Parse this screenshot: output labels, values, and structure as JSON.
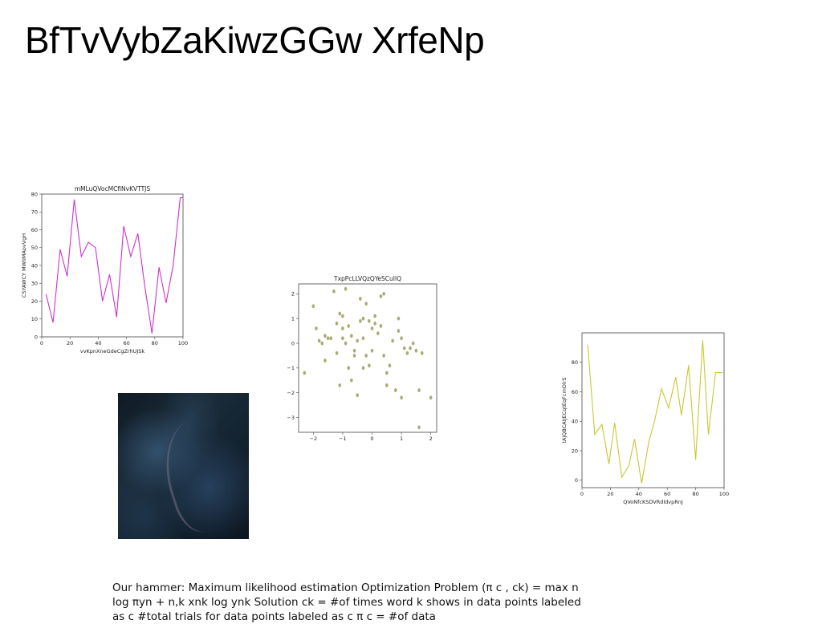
{
  "slide": {
    "title": "BfTvVybZaKiwzGGw XrfeNp",
    "body_text": "Our hammer: Maximum likelihood estimation Optimization Problem (π c , ck) = max  n log πyn +  n,k xnk log ynk   Solution  ck = #of times word k shows in data points labeled as c #total trials for data points labeled as c π c = #of data"
  },
  "colors": {
    "line1": "#cc33cc",
    "scatter": "#9c9c5a",
    "line2": "#c8c832",
    "axis": "#333333"
  },
  "image": {
    "name": "satellite-photo"
  },
  "chart_data": [
    {
      "type": "line",
      "title": "mMLuQVocMCfiNvKVTTJS",
      "xlabel": "vvKpnXneGdeCgZrhUJSk",
      "ylabel": "CSYAWCY MWIIMAovVgH",
      "x": [
        3,
        8,
        13,
        18,
        23,
        28,
        33,
        38,
        43,
        48,
        53,
        58,
        63,
        68,
        73,
        78,
        83,
        88,
        93,
        98,
        100
      ],
      "y": [
        24,
        8,
        49,
        34,
        77,
        45,
        53,
        50,
        20,
        35,
        11,
        62,
        45,
        58,
        28,
        2,
        39,
        19,
        40,
        78,
        78
      ],
      "xlim": [
        0,
        100
      ],
      "ylim": [
        0,
        80
      ],
      "xticks": [
        "0",
        "20",
        "40",
        "60",
        "80",
        "100"
      ],
      "yticks": [
        "0",
        "10",
        "20",
        "30",
        "40",
        "50",
        "60",
        "70",
        "80"
      ],
      "grid": false
    },
    {
      "type": "scatter",
      "title": "TxpPcLLVQzQYeSCuIlQ",
      "xlabel": "",
      "ylabel": "",
      "points": [
        [
          -2.3,
          -1.2
        ],
        [
          -2.0,
          1.5
        ],
        [
          -1.9,
          0.6
        ],
        [
          -1.8,
          0.1
        ],
        [
          -1.7,
          0.0
        ],
        [
          -1.6,
          0.3
        ],
        [
          -1.6,
          -0.7
        ],
        [
          -1.5,
          0.2
        ],
        [
          -1.4,
          0.2
        ],
        [
          -1.3,
          2.1
        ],
        [
          -1.2,
          0.8
        ],
        [
          -1.2,
          -0.4
        ],
        [
          -1.1,
          1.2
        ],
        [
          -1.1,
          -1.7
        ],
        [
          -1.0,
          1.1
        ],
        [
          -1.0,
          0.6
        ],
        [
          -1.0,
          0.2
        ],
        [
          -0.9,
          2.2
        ],
        [
          -0.9,
          0.0
        ],
        [
          -0.8,
          -1.0
        ],
        [
          -0.8,
          0.7
        ],
        [
          -0.7,
          -1.5
        ],
        [
          -0.7,
          0.3
        ],
        [
          -0.6,
          -0.3
        ],
        [
          -0.6,
          -0.5
        ],
        [
          -0.5,
          -2.1
        ],
        [
          -0.5,
          0.1
        ],
        [
          -0.4,
          1.8
        ],
        [
          -0.4,
          0.9
        ],
        [
          -0.3,
          1.0
        ],
        [
          -0.3,
          0.2
        ],
        [
          -0.3,
          -1.0
        ],
        [
          -0.2,
          1.6
        ],
        [
          -0.2,
          -0.5
        ],
        [
          -0.1,
          0.9
        ],
        [
          -0.1,
          -0.9
        ],
        [
          0.0,
          0.6
        ],
        [
          0.0,
          -0.3
        ],
        [
          0.1,
          1.1
        ],
        [
          0.1,
          0.8
        ],
        [
          0.2,
          0.4
        ],
        [
          0.3,
          1.9
        ],
        [
          0.3,
          0.7
        ],
        [
          0.4,
          2.0
        ],
        [
          0.4,
          -0.5
        ],
        [
          0.5,
          -1.7
        ],
        [
          0.5,
          -1.2
        ],
        [
          0.6,
          -0.9
        ],
        [
          0.7,
          0.1
        ],
        [
          0.8,
          -1.9
        ],
        [
          0.9,
          1.0
        ],
        [
          0.9,
          0.5
        ],
        [
          1.0,
          0.2
        ],
        [
          1.0,
          -2.2
        ],
        [
          1.1,
          -0.2
        ],
        [
          1.2,
          -0.4
        ],
        [
          1.3,
          -0.2
        ],
        [
          1.4,
          0.0
        ],
        [
          1.5,
          -0.3
        ],
        [
          1.6,
          -1.9
        ],
        [
          1.6,
          -3.4
        ],
        [
          1.7,
          -0.4
        ],
        [
          2.0,
          -2.2
        ]
      ],
      "xlim": [
        -2.5,
        2.2
      ],
      "ylim": [
        -3.6,
        2.4
      ],
      "xticks": [
        "−2",
        "−1",
        "0",
        "1",
        "2"
      ],
      "yticks": [
        "−3",
        "−2",
        "−1",
        "0",
        "1",
        "2"
      ],
      "grid": false
    },
    {
      "type": "line",
      "title": "",
      "xlabel": "QVoNfcKSDVRdldvpRnJ",
      "ylabel": "tAjQBCAIJECqtEqFcmOlrS",
      "x": [
        4,
        9,
        14,
        19,
        23,
        28,
        33,
        37,
        42,
        47,
        51,
        56,
        61,
        66,
        70,
        75,
        80,
        85,
        89,
        94,
        99
      ],
      "y": [
        92,
        31,
        38,
        11,
        39,
        2,
        10,
        28,
        -2,
        26,
        40,
        62,
        49,
        70,
        44,
        78,
        14,
        95,
        31,
        73,
        73
      ],
      "xlim": [
        0,
        100
      ],
      "ylim": [
        -5,
        100
      ],
      "xticks": [
        "0",
        "20",
        "40",
        "60",
        "80",
        "100"
      ],
      "yticks": [
        "0",
        "20",
        "40",
        "60",
        "80"
      ],
      "grid": false
    }
  ]
}
